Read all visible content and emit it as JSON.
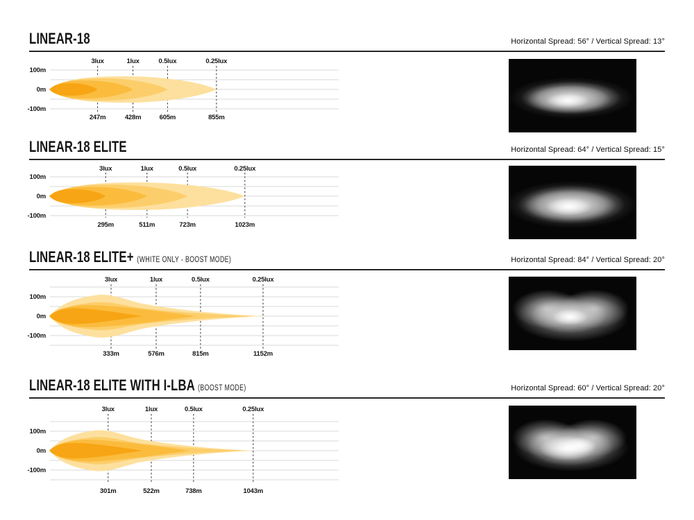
{
  "page": {
    "background": "#ffffff"
  },
  "chart_data": [
    {
      "type": "area",
      "title": "LINEAR-18",
      "subtitle": "",
      "spread_label": "Horizontal Spread: 56°  /  Vertical Spread: 13°",
      "horizontal_spread_deg": 56,
      "vertical_spread_deg": 13,
      "lux_levels": [
        "3lux",
        "1lux",
        "0.5lux",
        "0.25lux"
      ],
      "distances_m": [
        247,
        428,
        605,
        855
      ],
      "distance_labels": [
        "247m",
        "428m",
        "605m",
        "855m"
      ],
      "y_tick_labels": [
        "100m",
        "0m",
        "-100m"
      ],
      "y_range_m": [
        -100,
        100
      ],
      "beam_shape": "lens",
      "zone_tip_m": [
        247,
        428,
        605,
        855
      ],
      "zone_half_height_m": [
        32,
        46,
        57,
        68
      ],
      "zone_colors": [
        "#F7A514",
        "#FBBC3E",
        "#FCCE6B",
        "#FDE09E"
      ],
      "beam_glow": "oval"
    },
    {
      "type": "area",
      "title": "LINEAR-18 ELITE",
      "subtitle": "",
      "spread_label": "Horizontal Spread: 64°  /  Vertical Spread: 15°",
      "horizontal_spread_deg": 64,
      "vertical_spread_deg": 15,
      "lux_levels": [
        "3lux",
        "1lux",
        "0.5lux",
        "0.25lux"
      ],
      "distances_m": [
        295,
        511,
        723,
        1023
      ],
      "distance_labels": [
        "295m",
        "511m",
        "723m",
        "1023m"
      ],
      "y_tick_labels": [
        "100m",
        "0m",
        "-100m"
      ],
      "y_range_m": [
        -100,
        100
      ],
      "beam_shape": "lens",
      "zone_tip_m": [
        295,
        511,
        723,
        1023
      ],
      "zone_half_height_m": [
        36,
        48,
        60,
        71
      ],
      "zone_colors": [
        "#F7A514",
        "#FBBC3E",
        "#FCCE6B",
        "#FDE09E"
      ],
      "beam_glow": "oval-wide"
    },
    {
      "type": "area",
      "title": "LINEAR-18 ELITE+",
      "subtitle": "(WHITE ONLY - BOOST MODE)",
      "spread_label": "Horizontal Spread: 84°  /  Vertical Spread: 20°",
      "horizontal_spread_deg": 84,
      "vertical_spread_deg": 20,
      "lux_levels": [
        "3lux",
        "1lux",
        "0.5lux",
        "0.25lux"
      ],
      "distances_m": [
        333,
        576,
        815,
        1152
      ],
      "distance_labels": [
        "333m",
        "576m",
        "815m",
        "1152m"
      ],
      "y_tick_labels": [
        "100m",
        "0m",
        "-100m"
      ],
      "y_range_m": [
        -150,
        150
      ],
      "beam_shape": "winged",
      "zone_tip_m": [
        500,
        790,
        1120,
        1152
      ],
      "zone_half_height_m": [
        41,
        57,
        72,
        110
      ],
      "zone_colors": [
        "#F7A514",
        "#FBBC3E",
        "#FCCE6B",
        "#FDE09E"
      ],
      "beam_glow": "twin"
    },
    {
      "type": "area",
      "title": "LINEAR-18 ELITE WITH I-LBA",
      "subtitle": "(BOOST MODE)",
      "spread_label": "Horizontal Spread: 60°  /  Vertical Spread: 20°",
      "horizontal_spread_deg": 60,
      "vertical_spread_deg": 20,
      "lux_levels": [
        "3lux",
        "1lux",
        "0.5lux",
        "0.25lux"
      ],
      "distances_m": [
        301,
        522,
        738,
        1043
      ],
      "distance_labels": [
        "301m",
        "522m",
        "738m",
        "1043m"
      ],
      "y_tick_labels": [
        "100m",
        "0m",
        "-100m"
      ],
      "y_range_m": [
        -150,
        150
      ],
      "beam_shape": "winged",
      "zone_tip_m": [
        480,
        720,
        1020,
        1043
      ],
      "zone_half_height_m": [
        40,
        56,
        70,
        105
      ],
      "zone_colors": [
        "#F7A514",
        "#FBBC3E",
        "#FCCE6B",
        "#FDE09E"
      ],
      "beam_glow": "twin-bright"
    }
  ]
}
